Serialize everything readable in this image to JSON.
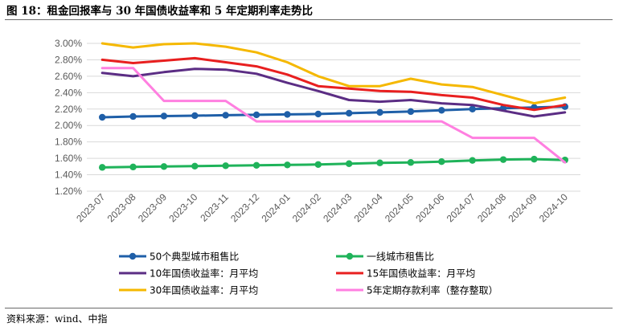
{
  "header": {
    "title": "图 18：租金回报率与 30 年国债收益率和 5 年定期利率走势比"
  },
  "footer": {
    "source": "资料来源：wind、中指"
  },
  "chart_data": {
    "type": "line",
    "title": "",
    "xlabel": "",
    "ylabel": "",
    "ylim": [
      1.2,
      3.0
    ],
    "yticks": [
      "1.20%",
      "1.40%",
      "1.60%",
      "1.80%",
      "2.00%",
      "2.20%",
      "2.40%",
      "2.60%",
      "2.80%",
      "3.00%"
    ],
    "grid": "horizontal",
    "legend_position": "bottom",
    "categories": [
      "2023-07",
      "2023-08",
      "2023-09",
      "2023-10",
      "2023-11",
      "2023-12",
      "2024-01",
      "2024-02",
      "2024-03",
      "2024-04",
      "2024-05",
      "2024-06",
      "2024-07",
      "2024-08",
      "2024-09",
      "2024-10"
    ],
    "series": [
      {
        "name": "50个典型城市租售比",
        "color": "#1f5fa8",
        "markers": true,
        "values": [
          2.1,
          2.11,
          2.115,
          2.12,
          2.125,
          2.13,
          2.135,
          2.14,
          2.15,
          2.16,
          2.17,
          2.185,
          2.2,
          2.21,
          2.22,
          2.23
        ]
      },
      {
        "name": "一线城市租售比",
        "color": "#1fb35a",
        "markers": true,
        "values": [
          1.49,
          1.495,
          1.5,
          1.505,
          1.51,
          1.515,
          1.52,
          1.525,
          1.535,
          1.545,
          1.55,
          1.56,
          1.575,
          1.585,
          1.59,
          1.58
        ]
      },
      {
        "name": "10年国债收益率：月平均",
        "color": "#5b2d84",
        "markers": false,
        "values": [
          2.64,
          2.6,
          2.65,
          2.69,
          2.68,
          2.63,
          2.52,
          2.42,
          2.31,
          2.29,
          2.31,
          2.27,
          2.25,
          2.18,
          2.11,
          2.16
        ]
      },
      {
        "name": "15年国债收益率：月平均",
        "color": "#e81f1f",
        "markers": false,
        "values": [
          2.8,
          2.76,
          2.79,
          2.82,
          2.77,
          2.72,
          2.62,
          2.48,
          2.45,
          2.42,
          2.41,
          2.37,
          2.34,
          2.25,
          2.19,
          2.25
        ]
      },
      {
        "name": "30年国债收益率：月平均",
        "color": "#f5b800",
        "markers": false,
        "values": [
          3.0,
          2.95,
          2.99,
          3.0,
          2.96,
          2.89,
          2.77,
          2.6,
          2.48,
          2.48,
          2.57,
          2.5,
          2.47,
          2.37,
          2.27,
          2.34
        ]
      },
      {
        "name": "5年定期存款利率（整存整取）",
        "color": "#ff7fe0",
        "markers": false,
        "values": [
          2.7,
          2.7,
          2.3,
          2.3,
          2.3,
          2.05,
          2.05,
          2.05,
          2.05,
          2.05,
          2.05,
          2.05,
          1.85,
          1.85,
          1.85,
          1.55
        ]
      }
    ]
  }
}
